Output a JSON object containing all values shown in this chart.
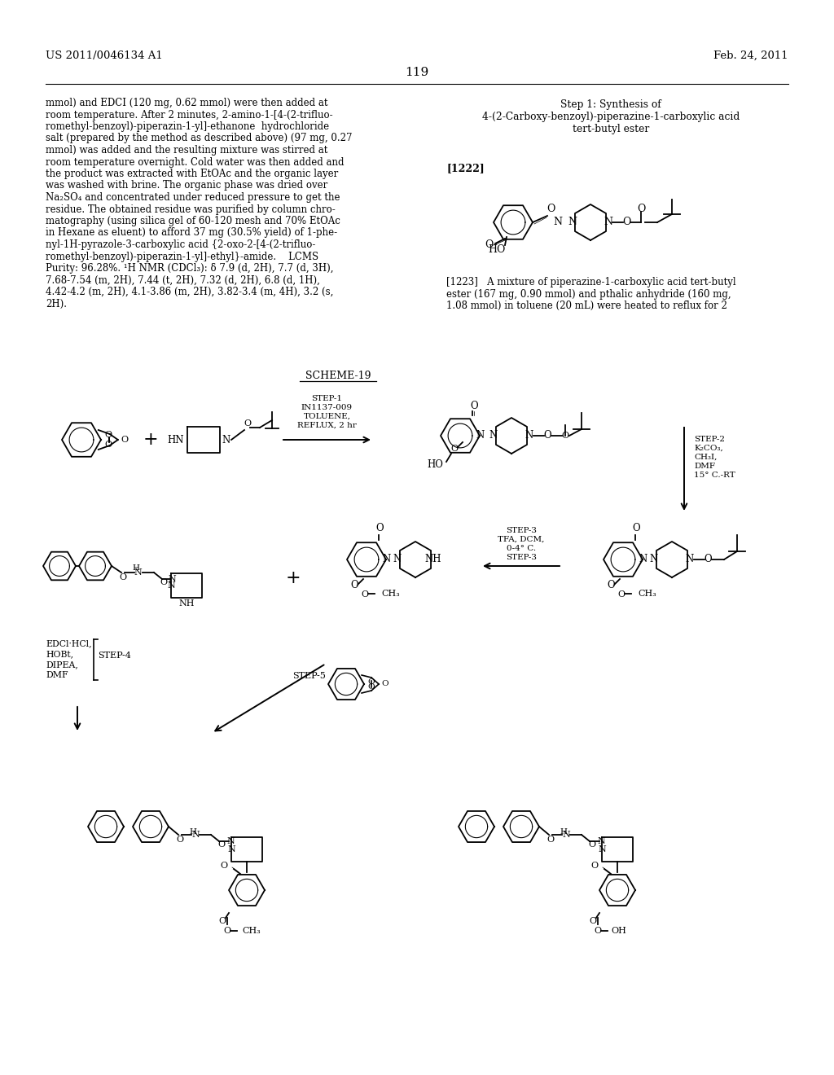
{
  "page_number": "119",
  "patent_number": "US 2011/0046134 A1",
  "patent_date": "Feb. 24, 2011",
  "background_color": "#ffffff",
  "text_color": "#000000",
  "left_text_lines": [
    "mmol) and EDCI (120 mg, 0.62 mmol) were then added at",
    "room temperature. After 2 minutes, 2-amino-1-[4-(2-trifluo-",
    "romethyl-benzoyl)-piperazin-1-yl]-ethanone  hydrochloride",
    "salt (prepared by the method as described above) (97 mg, 0.27",
    "mmol) was added and the resulting mixture was stirred at",
    "room temperature overnight. Cold water was then added and",
    "the product was extracted with EtOAc and the organic layer",
    "was washed with brine. The organic phase was dried over",
    "Na₂SO₄ and concentrated under reduced pressure to get the",
    "residue. The obtained residue was purified by column chro-",
    "matography (using silica gel of 60-120 mesh and 70% EtOAc",
    "in Hexane as eluent) to afford 37 mg (30.5% yield) of 1-phe-",
    "nyl-1H-pyrazole-3-carboxylic acid {2-oxo-2-[4-(2-trifluo-",
    "romethyl-benzoyl)-piperazin-1-yl]-ethyl}-amide.    LCMS",
    "Purity: 96.28%. ¹H NMR (CDCl₃): δ 7.9 (d, 2H), 7.7 (d, 3H),",
    "7.68-7.54 (m, 2H), 7.44 (t, 2H), 7.32 (d, 2H), 6.8 (d, 1H),",
    "4.42-4.2 (m, 2H), 4.1-3.86 (m, 2H), 3.82-3.4 (m, 4H), 3.2 (s,",
    "2H)."
  ],
  "right_title_lines": [
    "Step 1: Synthesis of",
    "4-(2-Carboxy-benzoyl)-piperazine-1-carboxylic acid",
    "tert-butyl ester"
  ],
  "ref_1222": "[1222]",
  "ref_1223_lines": [
    "[1223]   A mixture of piperazine-1-carboxylic acid tert-butyl",
    "ester (167 mg, 0.90 mmol) and pthalic anhydride (160 mg,",
    "1.08 mmol) in toluene (20 mL) were heated to reflux for 2"
  ],
  "scheme_title": "SCHEME-19",
  "step1_lines": [
    "STEP-1",
    "IN1137-009",
    "TOLUENE,",
    "REFLUX, 2 hr"
  ],
  "step2_lines": [
    "STEP-2",
    "K₂CO₃,",
    "CH₃I,",
    "DMF",
    "15° C.-RT"
  ],
  "step3_lines": [
    "STEP-3",
    "TFA, DCM,",
    "0-4° C.",
    "STEP-3"
  ],
  "step4_lines": [
    "EDCl·HCl,",
    "HOBt,",
    "DIPEA,",
    "DMF"
  ],
  "step4_name": "STEP-4",
  "step5_name": "STEP-5"
}
